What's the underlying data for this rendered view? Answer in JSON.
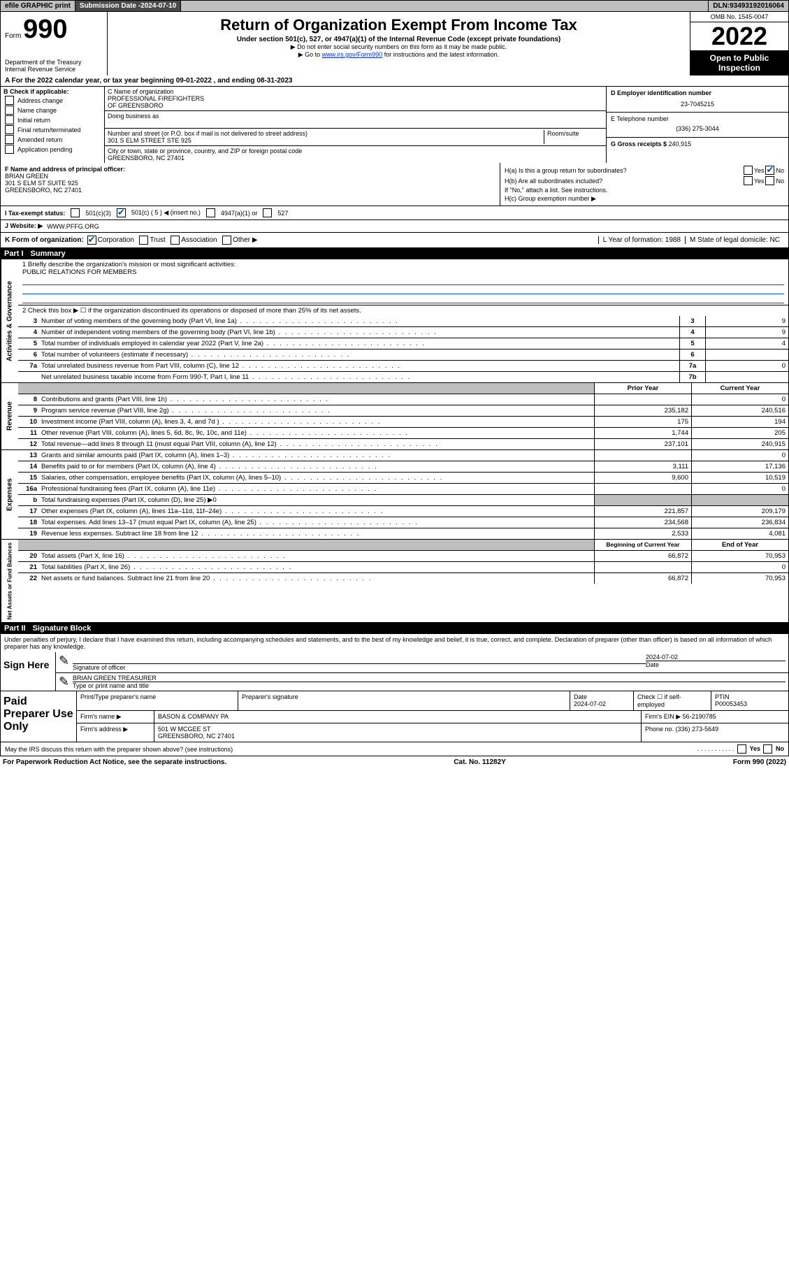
{
  "topbar": {
    "efile": "efile GRAPHIC print",
    "sub_label": "Submission Date - ",
    "sub_date": "2024-07-10",
    "dln_label": "DLN: ",
    "dln": "93493192016064"
  },
  "header": {
    "form": "Form",
    "number": "990",
    "dept": "Department of the Treasury",
    "irs": "Internal Revenue Service",
    "title": "Return of Organization Exempt From Income Tax",
    "sub1": "Under section 501(c), 527, or 4947(a)(1) of the Internal Revenue Code (except private foundations)",
    "sub2": "▶ Do not enter social security numbers on this form as it may be made public.",
    "sub3_pre": "▶ Go to ",
    "sub3_link": "www.irs.gov/Form990",
    "sub3_post": " for instructions and the latest information.",
    "omb": "OMB No. 1545-0047",
    "year": "2022",
    "open": "Open to Public Inspection"
  },
  "line_a": "A For the 2022 calendar year, or tax year beginning 09-01-2022    , and ending 08-31-2023",
  "col_b": {
    "title": "B Check if applicable:",
    "items": [
      "Address change",
      "Name change",
      "Initial return",
      "Final return/terminated",
      "Amended return",
      "Application pending"
    ]
  },
  "col_c": {
    "c_label": "C Name of organization",
    "c_name": "PROFESSIONAL FIREFIGHTERS\nOF GREENSBORO",
    "dba": "Doing business as",
    "addr_label": "Number and street (or P.O. box if mail is not delivered to street address)",
    "room": "Room/suite",
    "addr": "301 S ELM STREET STE 925",
    "city_label": "City or town, state or province, country, and ZIP or foreign postal code",
    "city": "GREENSBORO, NC  27401"
  },
  "col_de": {
    "d_label": "D Employer identification number",
    "d_val": "23-7045215",
    "e_label": "E Telephone number",
    "e_val": "(336) 275-3044",
    "g_label": "G Gross receipts $ ",
    "g_val": "240,915"
  },
  "block_f": {
    "f_label": "F Name and address of principal officer:",
    "f_name": "BRIAN GREEN",
    "f_addr1": "301 S ELM ST SUITE 925",
    "f_addr2": "GREENSBORO, NC  27401",
    "ha": "H(a)  Is this a group return for subordinates?",
    "hb": "H(b)  Are all subordinates included?",
    "hb_note": "If \"No,\" attach a list. See instructions.",
    "hc": "H(c)  Group exemption number ▶"
  },
  "line_i": {
    "label": "I   Tax-exempt status:",
    "opts": [
      "501(c)(3)",
      "501(c) ( 5 ) ◀ (insert no.)",
      "4947(a)(1) or",
      "527"
    ]
  },
  "line_j": {
    "label": "J   Website: ▶",
    "val": "WWW.PFFG.ORG"
  },
  "line_k": {
    "label": "K Form of organization:",
    "opts": [
      "Corporation",
      "Trust",
      "Association",
      "Other ▶"
    ],
    "l": "L Year of formation: 1988",
    "m": "M State of legal domicile: NC"
  },
  "part1": {
    "header": "Part I",
    "title": "Summary",
    "side_labels": [
      "Activities & Governance",
      "Revenue",
      "Expenses",
      "Net Assets or Fund Balances"
    ],
    "mission_label": "1   Briefly describe the organization's mission or most significant activities:",
    "mission": "PUBLIC RELATIONS FOR MEMBERS",
    "line2": "2   Check this box ▶ ☐  if the organization discontinued its operations or disposed of more than 25% of its net assets.",
    "gov_rows": [
      {
        "n": "3",
        "t": "Number of voting members of the governing body (Part VI, line 1a)",
        "b": "3",
        "v": "9"
      },
      {
        "n": "4",
        "t": "Number of independent voting members of the governing body (Part VI, line 1b)",
        "b": "4",
        "v": "9"
      },
      {
        "n": "5",
        "t": "Total number of individuals employed in calendar year 2022 (Part V, line 2a)",
        "b": "5",
        "v": "4"
      },
      {
        "n": "6",
        "t": "Total number of volunteers (estimate if necessary)",
        "b": "6",
        "v": ""
      },
      {
        "n": "7a",
        "t": "Total unrelated business revenue from Part VIII, column (C), line 12",
        "b": "7a",
        "v": "0"
      },
      {
        "n": "",
        "t": "Net unrelated business taxable income from Form 990-T, Part I, line 11",
        "b": "7b",
        "v": ""
      }
    ],
    "col_heads": {
      "prior": "Prior Year",
      "curr": "Current Year"
    },
    "rev_rows": [
      {
        "n": "8",
        "t": "Contributions and grants (Part VIII, line 1h)",
        "p": "",
        "c": "0"
      },
      {
        "n": "9",
        "t": "Program service revenue (Part VIII, line 2g)",
        "p": "235,182",
        "c": "240,516"
      },
      {
        "n": "10",
        "t": "Investment income (Part VIII, column (A), lines 3, 4, and 7d )",
        "p": "175",
        "c": "194"
      },
      {
        "n": "11",
        "t": "Other revenue (Part VIII, column (A), lines 5, 6d, 8c, 9c, 10c, and 11e)",
        "p": "1,744",
        "c": "205"
      },
      {
        "n": "12",
        "t": "Total revenue—add lines 8 through 11 (must equal Part VIII, column (A), line 12)",
        "p": "237,101",
        "c": "240,915"
      }
    ],
    "exp_rows": [
      {
        "n": "13",
        "t": "Grants and similar amounts paid (Part IX, column (A), lines 1–3)",
        "p": "",
        "c": "0"
      },
      {
        "n": "14",
        "t": "Benefits paid to or for members (Part IX, column (A), line 4)",
        "p": "3,111",
        "c": "17,136"
      },
      {
        "n": "15",
        "t": "Salaries, other compensation, employee benefits (Part IX, column (A), lines 5–10)",
        "p": "9,600",
        "c": "10,519"
      },
      {
        "n": "16a",
        "t": "Professional fundraising fees (Part IX, column (A), line 11e)",
        "p": "",
        "c": "0"
      },
      {
        "n": "b",
        "t": "Total fundraising expenses (Part IX, column (D), line 25) ▶0",
        "p": "",
        "c": "",
        "nb": true
      },
      {
        "n": "17",
        "t": "Other expenses (Part IX, column (A), lines 11a–11d, 11f–24e)",
        "p": "221,857",
        "c": "209,179"
      },
      {
        "n": "18",
        "t": "Total expenses. Add lines 13–17 (must equal Part IX, column (A), line 25)",
        "p": "234,568",
        "c": "236,834"
      },
      {
        "n": "19",
        "t": "Revenue less expenses. Subtract line 18 from line 12",
        "p": "2,533",
        "c": "4,081"
      }
    ],
    "na_heads": {
      "prior": "Beginning of Current Year",
      "curr": "End of Year"
    },
    "na_rows": [
      {
        "n": "20",
        "t": "Total assets (Part X, line 16)",
        "p": "66,872",
        "c": "70,953"
      },
      {
        "n": "21",
        "t": "Total liabilities (Part X, line 26)",
        "p": "",
        "c": "0"
      },
      {
        "n": "22",
        "t": "Net assets or fund balances. Subtract line 21 from line 20",
        "p": "66,872",
        "c": "70,953"
      }
    ]
  },
  "part2": {
    "header": "Part II",
    "title": "Signature Block",
    "penalties": "Under penalties of perjury, I declare that I have examined this return, including accompanying schedules and statements, and to the best of my knowledge and belief, it is true, correct, and complete. Declaration of preparer (other than officer) is based on all information of which preparer has any knowledge.",
    "sign_here": "Sign Here",
    "sig_officer": "Signature of officer",
    "date": "Date",
    "date_val": "2024-07-02",
    "name_label": "Type or print name and title",
    "name_val": "BRIAN GREEN  TREASURER",
    "paid": "Paid Preparer Use Only",
    "prep_name_h": "Print/Type preparer's name",
    "prep_sig_h": "Preparer's signature",
    "prep_date_h": "Date",
    "prep_date_v": "2024-07-02",
    "check_self": "Check ☐ if self-employed",
    "ptin_h": "PTIN",
    "ptin_v": "P00053453",
    "firm_name_l": "Firm's name    ▶",
    "firm_name_v": "BASON & COMPANY PA",
    "firm_ein_l": "Firm's EIN ▶",
    "firm_ein_v": "56-2190785",
    "firm_addr_l": "Firm's address ▶",
    "firm_addr_v1": "501 W MCGEE ST",
    "firm_addr_v2": "GREENSBORO, NC  27401",
    "phone_l": "Phone no. ",
    "phone_v": "(336) 273-5649",
    "may_irs": "May the IRS discuss this return with the preparer shown above? (see instructions)"
  },
  "footer": {
    "left": "For Paperwork Reduction Act Notice, see the separate instructions.",
    "mid": "Cat. No. 11282Y",
    "right": "Form 990 (2022)"
  }
}
